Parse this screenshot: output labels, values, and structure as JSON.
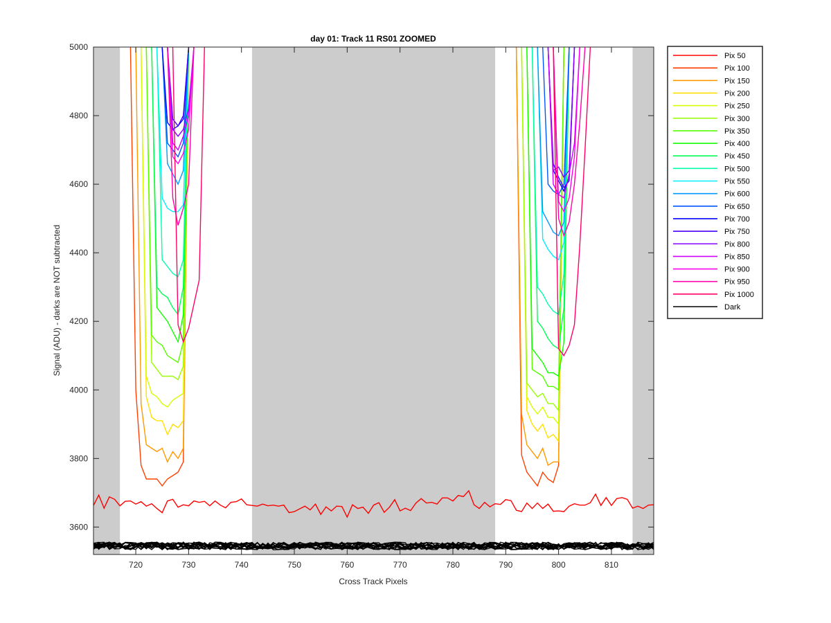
{
  "chart_data": {
    "type": "line",
    "title": "day 01: Track 11  RS01 ZOOMED",
    "xlabel": "Cross Track Pixels",
    "ylabel": "Signal (ADU) - darks are NOT subtracted",
    "xlim": [
      712,
      818
    ],
    "ylim": [
      3520,
      5000
    ],
    "xticks": [
      720,
      730,
      740,
      750,
      760,
      770,
      780,
      790,
      800,
      810
    ],
    "yticks": [
      3600,
      3800,
      4000,
      4200,
      4400,
      4600,
      4800,
      5000
    ],
    "grid": false,
    "legend_position": "outside-right",
    "shaded_regions": [
      [
        712,
        717
      ],
      [
        742,
        788
      ],
      [
        814,
        818
      ]
    ],
    "shade_color": "#cccccc",
    "left_valley_x": [
      719,
      720,
      721,
      722,
      723,
      724,
      725,
      726,
      727,
      728,
      729,
      730,
      731,
      732,
      733
    ],
    "right_valley_x": [
      791,
      792,
      793,
      794,
      795,
      796,
      797,
      798,
      799,
      800,
      801,
      802,
      803,
      804,
      805,
      806
    ],
    "series": [
      {
        "name": "Pix 50",
        "color": "#ff0000"
      },
      {
        "name": "Pix 100",
        "color": "#ff4000",
        "left_y": [
          5000,
          4000,
          3780,
          3740,
          3740,
          3740,
          3720,
          3740,
          3750,
          3760,
          3790,
          5000,
          null,
          null,
          null
        ],
        "right_y": [
          null,
          5000,
          3810,
          3760,
          3740,
          3720,
          3760,
          3740,
          3730,
          3780,
          5000,
          null,
          null,
          null,
          null,
          null
        ]
      },
      {
        "name": "Pix 150",
        "color": "#ff9900",
        "left_y": [
          null,
          5000,
          3960,
          3840,
          3830,
          3820,
          3830,
          3790,
          3820,
          3800,
          3830,
          5000,
          null,
          null,
          null
        ],
        "right_y": [
          null,
          5000,
          3930,
          3840,
          3820,
          3800,
          3830,
          3780,
          3790,
          3790,
          5000,
          null,
          null,
          null,
          null,
          null
        ]
      },
      {
        "name": "Pix 200",
        "color": "#ffe000",
        "left_y": [
          null,
          null,
          5000,
          3980,
          3920,
          3910,
          3910,
          3870,
          3900,
          3890,
          3910,
          5000,
          null,
          null,
          null
        ],
        "right_y": [
          null,
          null,
          5000,
          3940,
          3900,
          3880,
          3900,
          3860,
          3870,
          3850,
          5000,
          null,
          null,
          null,
          null,
          null
        ]
      },
      {
        "name": "Pix 250",
        "color": "#d4ff00",
        "left_y": [
          null,
          null,
          5000,
          4040,
          3990,
          3980,
          3960,
          3950,
          3970,
          3980,
          3990,
          5000,
          null,
          null,
          null
        ],
        "right_y": [
          null,
          null,
          5000,
          3980,
          3950,
          3930,
          3950,
          3920,
          3920,
          3900,
          5000,
          null,
          null,
          null,
          null,
          null
        ]
      },
      {
        "name": "Pix 300",
        "color": "#99ff00",
        "left_y": [
          null,
          null,
          5000,
          5000,
          4080,
          4060,
          4040,
          4040,
          4040,
          4030,
          4070,
          5000,
          null,
          null,
          null
        ],
        "right_y": [
          null,
          null,
          5000,
          4020,
          4000,
          3980,
          3990,
          3960,
          3960,
          3940,
          5000,
          null,
          null,
          null,
          null,
          null
        ]
      },
      {
        "name": "Pix 350",
        "color": "#55ff00",
        "left_y": [
          null,
          null,
          null,
          5000,
          4160,
          4140,
          4130,
          4100,
          4090,
          4080,
          4140,
          5000,
          null,
          null,
          null
        ],
        "right_y": [
          null,
          null,
          null,
          5000,
          4060,
          4050,
          4040,
          4010,
          4010,
          4000,
          5000,
          null,
          null,
          null,
          null,
          null
        ]
      },
      {
        "name": "Pix 400",
        "color": "#11ff00",
        "left_y": [
          null,
          null,
          null,
          5000,
          5000,
          4240,
          4220,
          4200,
          4170,
          4140,
          4220,
          5000,
          null,
          null,
          null
        ],
        "right_y": [
          null,
          null,
          null,
          5000,
          4120,
          4100,
          4080,
          4050,
          4050,
          4040,
          4140,
          5000,
          null,
          null,
          null,
          null
        ]
      },
      {
        "name": "Pix 450",
        "color": "#00ff55",
        "left_y": [
          null,
          null,
          null,
          null,
          5000,
          4300,
          4280,
          4270,
          4240,
          4220,
          4300,
          5000,
          null,
          null,
          null
        ],
        "right_y": [
          null,
          null,
          null,
          null,
          5000,
          4200,
          4180,
          4150,
          4130,
          4120,
          4240,
          5000,
          null,
          null,
          null,
          null
        ]
      },
      {
        "name": "Pix 500",
        "color": "#00ffaa",
        "left_y": [
          null,
          null,
          null,
          null,
          5000,
          5000,
          4380,
          4360,
          4340,
          4330,
          4380,
          5000,
          null,
          null,
          null
        ],
        "right_y": [
          null,
          null,
          null,
          null,
          5000,
          4300,
          4280,
          4250,
          4230,
          4220,
          4340,
          5000,
          null,
          null,
          null,
          null
        ]
      },
      {
        "name": "Pix 550",
        "color": "#00eeff",
        "left_y": [
          null,
          null,
          null,
          null,
          null,
          5000,
          4560,
          4530,
          4520,
          4520,
          4540,
          5000,
          null,
          null,
          null
        ],
        "right_y": [
          null,
          null,
          null,
          null,
          null,
          5000,
          4440,
          4410,
          4390,
          4380,
          4430,
          5000,
          null,
          null,
          null,
          null
        ]
      },
      {
        "name": "Pix 600",
        "color": "#0099ff",
        "left_y": [
          null,
          null,
          null,
          null,
          null,
          5000,
          5000,
          4660,
          4630,
          4600,
          4640,
          5000,
          null,
          null,
          null
        ],
        "right_y": [
          null,
          null,
          null,
          null,
          null,
          5000,
          4520,
          4490,
          4460,
          4450,
          4490,
          5000,
          null,
          null,
          null,
          null
        ]
      },
      {
        "name": "Pix 650",
        "color": "#0055ff",
        "left_y": [
          null,
          null,
          null,
          null,
          null,
          null,
          5000,
          4720,
          4700,
          4680,
          4720,
          5000,
          null,
          null,
          null
        ],
        "right_y": [
          null,
          null,
          null,
          null,
          null,
          null,
          5000,
          4600,
          4580,
          4570,
          4600,
          5000,
          null,
          null,
          null,
          null
        ]
      },
      {
        "name": "Pix 700",
        "color": "#0000ff",
        "left_y": [
          null,
          null,
          null,
          null,
          null,
          null,
          5000,
          4780,
          4760,
          4770,
          4790,
          5000,
          null,
          null,
          null
        ],
        "right_y": [
          null,
          null,
          null,
          null,
          null,
          null,
          null,
          5000,
          4640,
          4610,
          4580,
          4620,
          5000,
          null,
          null,
          null
        ]
      },
      {
        "name": "Pix 750",
        "color": "#4400ff",
        "left_y": [
          null,
          null,
          null,
          null,
          null,
          null,
          null,
          5000,
          4790,
          4770,
          4800,
          5000,
          null,
          null,
          null
        ],
        "right_y": [
          null,
          null,
          null,
          null,
          null,
          null,
          null,
          5000,
          4660,
          4620,
          4590,
          4610,
          5000,
          null,
          null,
          null
        ]
      },
      {
        "name": "Pix 800",
        "color": "#8800ff",
        "left_y": [
          null,
          null,
          null,
          null,
          null,
          null,
          null,
          5000,
          4760,
          4740,
          4760,
          4820,
          5000,
          null,
          null
        ],
        "right_y": [
          null,
          null,
          null,
          null,
          null,
          null,
          null,
          5000,
          4640,
          4650,
          4620,
          4640,
          5000,
          null,
          null,
          null
        ]
      },
      {
        "name": "Pix 850",
        "color": "#cc00ff",
        "left_y": [
          null,
          null,
          null,
          null,
          null,
          null,
          null,
          5000,
          4720,
          4700,
          4740,
          4800,
          5000,
          null,
          null
        ],
        "right_y": [
          null,
          null,
          null,
          null,
          null,
          null,
          null,
          5000,
          4600,
          4570,
          4560,
          4630,
          4720,
          5000,
          null,
          null
        ]
      },
      {
        "name": "Pix 900",
        "color": "#ff00ee",
        "left_y": [
          null,
          null,
          null,
          null,
          null,
          null,
          null,
          5000,
          4680,
          4660,
          4690,
          4760,
          5000,
          null,
          null
        ],
        "right_y": [
          null,
          null,
          null,
          null,
          null,
          null,
          null,
          null,
          5000,
          4550,
          4520,
          4560,
          4680,
          5000,
          null,
          null
        ]
      },
      {
        "name": "Pix 950",
        "color": "#ff00aa",
        "left_y": [
          null,
          null,
          null,
          null,
          null,
          null,
          null,
          5000,
          4560,
          4480,
          4530,
          4600,
          5000,
          null,
          null
        ],
        "right_y": [
          null,
          null,
          null,
          null,
          null,
          null,
          null,
          null,
          5000,
          4500,
          4450,
          4490,
          4600,
          4780,
          5000,
          null
        ]
      },
      {
        "name": "Pix 1000",
        "color": "#ff0066",
        "left_y": [
          null,
          null,
          null,
          null,
          null,
          null,
          null,
          null,
          5000,
          4190,
          4140,
          4180,
          4250,
          4320,
          5000
        ],
        "right_y": [
          null,
          null,
          null,
          null,
          null,
          null,
          null,
          null,
          5000,
          4120,
          4100,
          4130,
          4190,
          4420,
          4700,
          5000
        ]
      },
      {
        "name": "Dark",
        "color": "#000000"
      }
    ],
    "pix50_x": [
      712,
      713,
      714,
      715,
      716,
      717,
      718,
      719,
      720,
      721,
      722,
      723,
      724,
      725,
      726,
      727,
      728,
      729,
      730,
      731,
      732,
      733,
      734,
      735,
      736,
      737,
      738,
      739,
      740,
      741,
      742,
      743,
      744,
      745,
      746,
      747,
      748,
      749,
      750,
      751,
      752,
      753,
      754,
      755,
      756,
      757,
      758,
      759,
      760,
      761,
      762,
      763,
      764,
      765,
      766,
      767,
      768,
      769,
      770,
      771,
      772,
      773,
      774,
      775,
      776,
      777,
      778,
      779,
      780,
      781,
      782,
      783,
      784,
      785,
      786,
      787,
      788,
      789,
      790,
      791,
      792,
      793,
      794,
      795,
      796,
      797,
      798,
      799,
      800,
      801,
      802,
      803,
      804,
      805,
      806,
      807,
      808,
      809,
      810,
      811,
      812,
      813,
      814,
      815,
      816,
      817,
      818
    ],
    "pix50_y": [
      3663,
      3693,
      3655,
      3688,
      3681,
      3662,
      3675,
      3676,
      3667,
      3674,
      3661,
      3668,
      3654,
      3642,
      3676,
      3681,
      3658,
      3665,
      3662,
      3676,
      3672,
      3675,
      3662,
      3676,
      3664,
      3656,
      3672,
      3674,
      3682,
      3665,
      3663,
      3661,
      3667,
      3662,
      3664,
      3661,
      3664,
      3642,
      3645,
      3653,
      3661,
      3650,
      3667,
      3637,
      3659,
      3647,
      3661,
      3660,
      3629,
      3665,
      3654,
      3658,
      3640,
      3664,
      3671,
      3643,
      3658,
      3680,
      3647,
      3655,
      3648,
      3670,
      3683,
      3670,
      3672,
      3667,
      3685,
      3685,
      3676,
      3692,
      3689,
      3706,
      3665,
      3654,
      3672,
      3659,
      3668,
      3666,
      3680,
      3677,
      3649,
      3645,
      3670,
      3654,
      3670,
      3654,
      3667,
      3646,
      3647,
      3645,
      3661,
      3668,
      3664,
      3664,
      3671,
      3696,
      3663,
      3686,
      3663,
      3683,
      3686,
      3681,
      3655,
      3661,
      3654,
      3664,
      3665
    ],
    "dark_x": [
      712,
      813,
      2
    ],
    "dark_center": 3545,
    "dark_spread": 14,
    "dark_lines": 14
  }
}
